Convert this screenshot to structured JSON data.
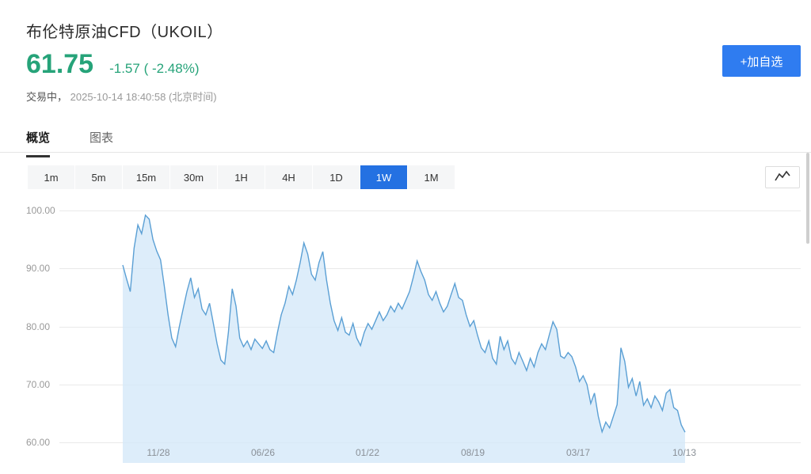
{
  "header": {
    "title": "布伦特原油CFD（UKOIL）",
    "price": "61.75",
    "change": "-1.57 ( -2.48%)",
    "status_state": "交易中，",
    "status_time": "2025-10-14 18:40:58 (北京时间)",
    "add_watchlist_label": "+加自选"
  },
  "tabs": [
    {
      "label": "概览",
      "active": true
    },
    {
      "label": "图表",
      "active": false
    }
  ],
  "timeframes": [
    {
      "label": "1m",
      "active": false
    },
    {
      "label": "5m",
      "active": false
    },
    {
      "label": "15m",
      "active": false
    },
    {
      "label": "30m",
      "active": false
    },
    {
      "label": "1H",
      "active": false
    },
    {
      "label": "4H",
      "active": false
    },
    {
      "label": "1D",
      "active": false
    },
    {
      "label": "1W",
      "active": true
    },
    {
      "label": "1M",
      "active": false
    }
  ],
  "colors": {
    "price_green": "#26a379",
    "accent_blue": "#2f7cf0",
    "active_timeframe_blue": "#2471e2",
    "chart_line": "#5a9fd4",
    "chart_fill": "#d2e7f8"
  },
  "chart_data": {
    "type": "area",
    "title": "布伦特原油CFD (UKOIL) 1W",
    "xlabel": "",
    "ylabel": "",
    "ylim": [
      56.5,
      101.5
    ],
    "grid": true,
    "ytick_labels": [
      "100.00",
      "90.00",
      "80.00",
      "70.00",
      "60.00"
    ],
    "yticks": [
      100,
      90,
      80,
      70,
      60
    ],
    "xtick_labels": [
      "11/28",
      "06/26",
      "01/22",
      "08/19",
      "03/17",
      "10/13"
    ],
    "xtick_indices": [
      9.4,
      37.1,
      64.8,
      92.7,
      120.7,
      148.8
    ],
    "values": [
      90.6,
      88.2,
      86.0,
      93.5,
      97.5,
      96.0,
      99.2,
      98.5,
      95.0,
      93.0,
      91.5,
      87.0,
      82.0,
      78.0,
      76.5,
      80.0,
      83.0,
      86.0,
      88.4,
      85.0,
      86.5,
      83.0,
      82.0,
      84.0,
      80.5,
      77.0,
      74.2,
      73.5,
      79.0,
      86.5,
      83.5,
      78.0,
      76.5,
      77.5,
      76.0,
      77.8,
      77.0,
      76.2,
      77.5,
      76.0,
      75.5,
      79.0,
      82.0,
      84.0,
      86.9,
      85.5,
      88.0,
      91.0,
      94.4,
      92.5,
      89.0,
      88.0,
      91.0,
      92.9,
      88.0,
      84.0,
      81.0,
      79.3,
      81.5,
      79.0,
      78.5,
      80.5,
      78.0,
      76.7,
      79.0,
      80.5,
      79.5,
      81.0,
      82.5,
      81.0,
      82.0,
      83.5,
      82.5,
      84.0,
      83.0,
      84.5,
      86.0,
      88.5,
      91.3,
      89.5,
      88.0,
      85.5,
      84.5,
      86.0,
      84.0,
      82.5,
      83.5,
      85.5,
      87.4,
      85.0,
      84.5,
      82.0,
      80.0,
      81.0,
      78.5,
      76.3,
      75.5,
      77.5,
      74.5,
      73.5,
      78.3,
      76.0,
      77.5,
      74.5,
      73.5,
      75.5,
      74.0,
      72.4,
      74.5,
      73.0,
      75.5,
      77.0,
      76.0,
      78.5,
      80.8,
      79.5,
      74.9,
      74.5,
      75.5,
      74.8,
      73.0,
      70.5,
      71.5,
      70.0,
      66.7,
      68.5,
      64.5,
      61.8,
      63.5,
      62.5,
      64.5,
      66.5,
      76.3,
      74.0,
      69.5,
      71.0,
      68.0,
      70.5,
      66.4,
      67.5,
      66.0,
      68.0,
      67.0,
      65.5,
      68.5,
      69.1,
      66.0,
      65.5,
      63.0,
      61.75
    ]
  }
}
